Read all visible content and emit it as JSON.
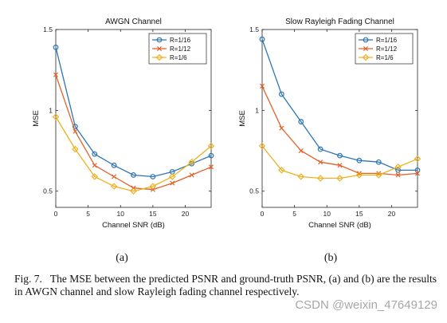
{
  "chart_data": [
    {
      "type": "line",
      "title": "AWGN Channel",
      "xlabel": "Channel SNR (dB)",
      "ylabel": "MSE",
      "xlim": [
        0,
        24
      ],
      "ylim": [
        0.4,
        1.5
      ],
      "xticks": [
        0,
        5,
        10,
        15,
        20
      ],
      "yticks": [
        0.5,
        1,
        1.5
      ],
      "ytick_labels": [
        "0.5",
        "1",
        "1.5"
      ],
      "legend": "top-right",
      "x": [
        0,
        3,
        6,
        9,
        12,
        15,
        18,
        21,
        24
      ],
      "series": [
        {
          "name": "R=1/16",
          "color": "#2E75B6",
          "marker": "circle",
          "values": [
            1.39,
            0.9,
            0.73,
            0.66,
            0.6,
            0.59,
            0.62,
            0.67,
            0.72
          ]
        },
        {
          "name": "R=1/12",
          "color": "#E0622A",
          "marker": "x",
          "values": [
            1.22,
            0.87,
            0.66,
            0.59,
            0.52,
            0.51,
            0.55,
            0.6,
            0.65
          ]
        },
        {
          "name": "R=1/6",
          "color": "#EDB120",
          "marker": "diamond",
          "values": [
            0.96,
            0.76,
            0.59,
            0.53,
            0.5,
            0.53,
            0.59,
            0.68,
            0.78
          ]
        }
      ]
    },
    {
      "type": "line",
      "title": "Slow Rayleigh Fading Channel",
      "xlabel": "Channel SNR (dB)",
      "ylabel": "MSE",
      "xlim": [
        0,
        24
      ],
      "ylim": [
        0.4,
        1.5
      ],
      "xticks": [
        0,
        5,
        10,
        15,
        20
      ],
      "yticks": [
        0.5,
        1,
        1.5
      ],
      "ytick_labels": [
        "0.5",
        "1",
        "1.5"
      ],
      "legend": "top-right",
      "x": [
        0,
        3,
        6,
        9,
        12,
        15,
        18,
        21,
        24
      ],
      "series": [
        {
          "name": "R=1/16",
          "color": "#2E75B6",
          "marker": "circle",
          "values": [
            1.44,
            1.1,
            0.93,
            0.76,
            0.72,
            0.69,
            0.68,
            0.63,
            0.63
          ]
        },
        {
          "name": "R=1/12",
          "color": "#E0622A",
          "marker": "x",
          "values": [
            1.15,
            0.89,
            0.75,
            0.68,
            0.66,
            0.61,
            0.61,
            0.6,
            0.61
          ]
        },
        {
          "name": "R=1/6",
          "color": "#EDB120",
          "marker": "diamond",
          "values": [
            0.78,
            0.63,
            0.59,
            0.58,
            0.58,
            0.6,
            0.6,
            0.65,
            0.7
          ]
        }
      ]
    }
  ],
  "subfigure_labels": [
    "(a)",
    "(b)"
  ],
  "caption": {
    "label": "Fig. 7.",
    "text": "The MSE between the predicted PSNR and ground-truth PSNR, (a) and (b) are the results in AWGN channel and slow Rayleigh fading channel respectively."
  },
  "watermark": "CSDN @weixin_47649129"
}
